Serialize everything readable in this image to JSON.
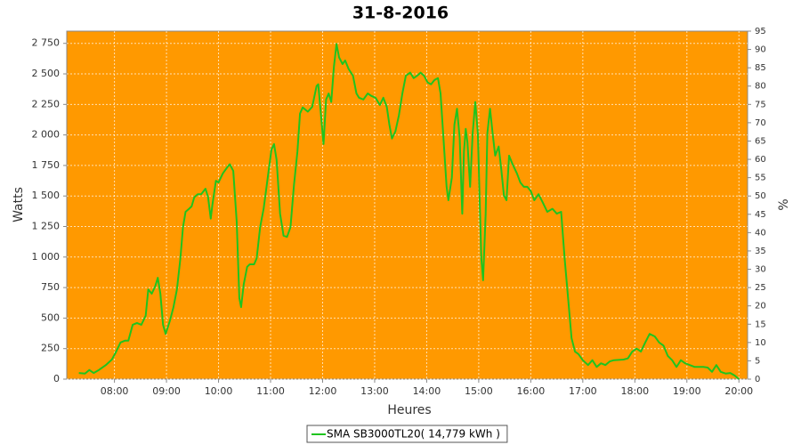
{
  "chart_data": {
    "type": "line",
    "title": "31-8-2016",
    "x_label": "Heures",
    "y_label": "Watts",
    "y2_label": "%",
    "plot_background": "#ff9900",
    "grid": true,
    "x": [
      "07:19",
      "07:26",
      "07:31",
      "07:36",
      "07:42",
      "07:50",
      "07:57",
      "08:02",
      "08:07",
      "08:12",
      "08:16",
      "08:21",
      "08:26",
      "08:31",
      "08:36",
      "08:39",
      "08:43",
      "08:47",
      "08:50",
      "08:53",
      "08:56",
      "08:59",
      "09:04",
      "09:08",
      "09:12",
      "09:16",
      "09:19",
      "09:22",
      "09:26",
      "09:29",
      "09:32",
      "09:36",
      "09:40",
      "09:45",
      "09:48",
      "09:51",
      "09:53",
      "09:57",
      "10:00",
      "10:05",
      "10:10",
      "10:13",
      "10:17",
      "10:21",
      "10:24",
      "10:26",
      "10:29",
      "10:33",
      "10:36",
      "10:41",
      "10:44",
      "10:48",
      "10:52",
      "10:56",
      "11:01",
      "11:04",
      "11:07",
      "11:11",
      "11:15",
      "11:19",
      "11:23",
      "11:27",
      "11:31",
      "11:34",
      "11:37",
      "11:43",
      "11:48",
      "11:53",
      "11:55",
      "11:58",
      "12:01",
      "12:04",
      "12:07",
      "12:10",
      "12:13",
      "12:16",
      "12:19",
      "12:23",
      "12:26",
      "12:30",
      "12:35",
      "12:39",
      "12:42",
      "12:47",
      "12:52",
      "12:56",
      "13:01",
      "13:06",
      "13:10",
      "13:14",
      "13:17",
      "13:20",
      "13:24",
      "13:28",
      "13:32",
      "13:36",
      "13:41",
      "13:45",
      "13:49",
      "13:53",
      "13:57",
      "14:01",
      "14:05",
      "14:09",
      "14:13",
      "14:16",
      "14:19",
      "14:23",
      "14:25",
      "14:29",
      "14:32",
      "14:35",
      "14:38",
      "14:41",
      "14:43",
      "14:45",
      "14:47",
      "14:50",
      "14:53",
      "14:56",
      "14:59",
      "15:03",
      "15:05",
      "15:08",
      "15:10",
      "15:13",
      "15:16",
      "15:19",
      "15:23",
      "15:26",
      "15:29",
      "15:32",
      "15:35",
      "15:39",
      "15:44",
      "15:48",
      "15:52",
      "15:56",
      "16:00",
      "16:04",
      "16:09",
      "16:14",
      "16:19",
      "16:25",
      "16:30",
      "16:35",
      "16:39",
      "16:43",
      "16:47",
      "16:51",
      "16:55",
      "17:00",
      "17:06",
      "17:11",
      "17:16",
      "17:21",
      "17:26",
      "17:31",
      "17:36",
      "17:47",
      "17:52",
      "17:57",
      "18:02",
      "18:07",
      "18:12",
      "18:17",
      "18:23",
      "18:28",
      "18:33",
      "18:38",
      "18:43",
      "18:48",
      "18:53",
      "18:58",
      "19:09",
      "19:19",
      "19:24",
      "19:29",
      "19:34",
      "19:39",
      "19:45",
      "19:50",
      "19:55",
      "20:00"
    ],
    "series": [
      {
        "name": "SMA SB3000TL20( 14,779 kWh )",
        "color": "#1fc41f",
        "values": [
          50,
          45,
          75,
          50,
          75,
          115,
          160,
          225,
          300,
          315,
          315,
          445,
          460,
          445,
          520,
          735,
          700,
          760,
          830,
          700,
          445,
          370,
          480,
          590,
          735,
          990,
          1245,
          1370,
          1395,
          1415,
          1490,
          1515,
          1515,
          1560,
          1490,
          1315,
          1430,
          1625,
          1610,
          1685,
          1735,
          1760,
          1705,
          1285,
          665,
          590,
          775,
          920,
          940,
          940,
          990,
          1245,
          1395,
          1610,
          1880,
          1925,
          1795,
          1355,
          1175,
          1165,
          1245,
          1590,
          1865,
          2175,
          2225,
          2190,
          2230,
          2400,
          2415,
          2175,
          1925,
          2290,
          2340,
          2270,
          2560,
          2745,
          2635,
          2580,
          2610,
          2540,
          2485,
          2340,
          2305,
          2290,
          2340,
          2320,
          2305,
          2245,
          2305,
          2230,
          2085,
          1970,
          2030,
          2160,
          2340,
          2485,
          2510,
          2465,
          2485,
          2510,
          2485,
          2430,
          2415,
          2450,
          2465,
          2340,
          2015,
          1575,
          1465,
          1650,
          2085,
          2215,
          1975,
          1355,
          1865,
          2050,
          1940,
          1575,
          2015,
          2270,
          2015,
          990,
          810,
          1355,
          2015,
          2215,
          2015,
          1830,
          1905,
          1720,
          1505,
          1465,
          1830,
          1760,
          1685,
          1610,
          1575,
          1575,
          1540,
          1465,
          1515,
          1445,
          1370,
          1395,
          1355,
          1370,
          990,
          665,
          335,
          225,
          205,
          155,
          115,
          155,
          100,
          130,
          115,
          145,
          155,
          160,
          170,
          225,
          250,
          225,
          300,
          370,
          350,
          300,
          275,
          190,
          155,
          100,
          155,
          130,
          100,
          100,
          95,
          60,
          115,
          60,
          45,
          50,
          30,
          0
        ]
      }
    ],
    "xlim": [
      "07:05",
      "20:10"
    ],
    "xticks": [
      "08:00",
      "09:00",
      "10:00",
      "11:00",
      "12:00",
      "13:00",
      "14:00",
      "15:00",
      "16:00",
      "17:00",
      "18:00",
      "19:00",
      "20:00"
    ],
    "ylim": [
      0,
      2850
    ],
    "yticks": [
      0,
      250,
      500,
      750,
      {
        "value": 1000,
        "label": "1 000"
      },
      {
        "value": 1250,
        "label": "1 250"
      },
      {
        "value": 1500,
        "label": "1 500"
      },
      {
        "value": 1750,
        "label": "1 750"
      },
      {
        "value": 2000,
        "label": "2 000"
      },
      {
        "value": 2250,
        "label": "2 250"
      },
      {
        "value": 2500,
        "label": "2 500"
      },
      {
        "value": 2750,
        "label": "2 750"
      }
    ],
    "y2lim": [
      0,
      95
    ],
    "y2ticks": [
      0,
      5,
      10,
      15,
      20,
      25,
      30,
      35,
      40,
      45,
      50,
      55,
      60,
      65,
      70,
      75,
      80,
      85,
      90,
      95
    ]
  }
}
